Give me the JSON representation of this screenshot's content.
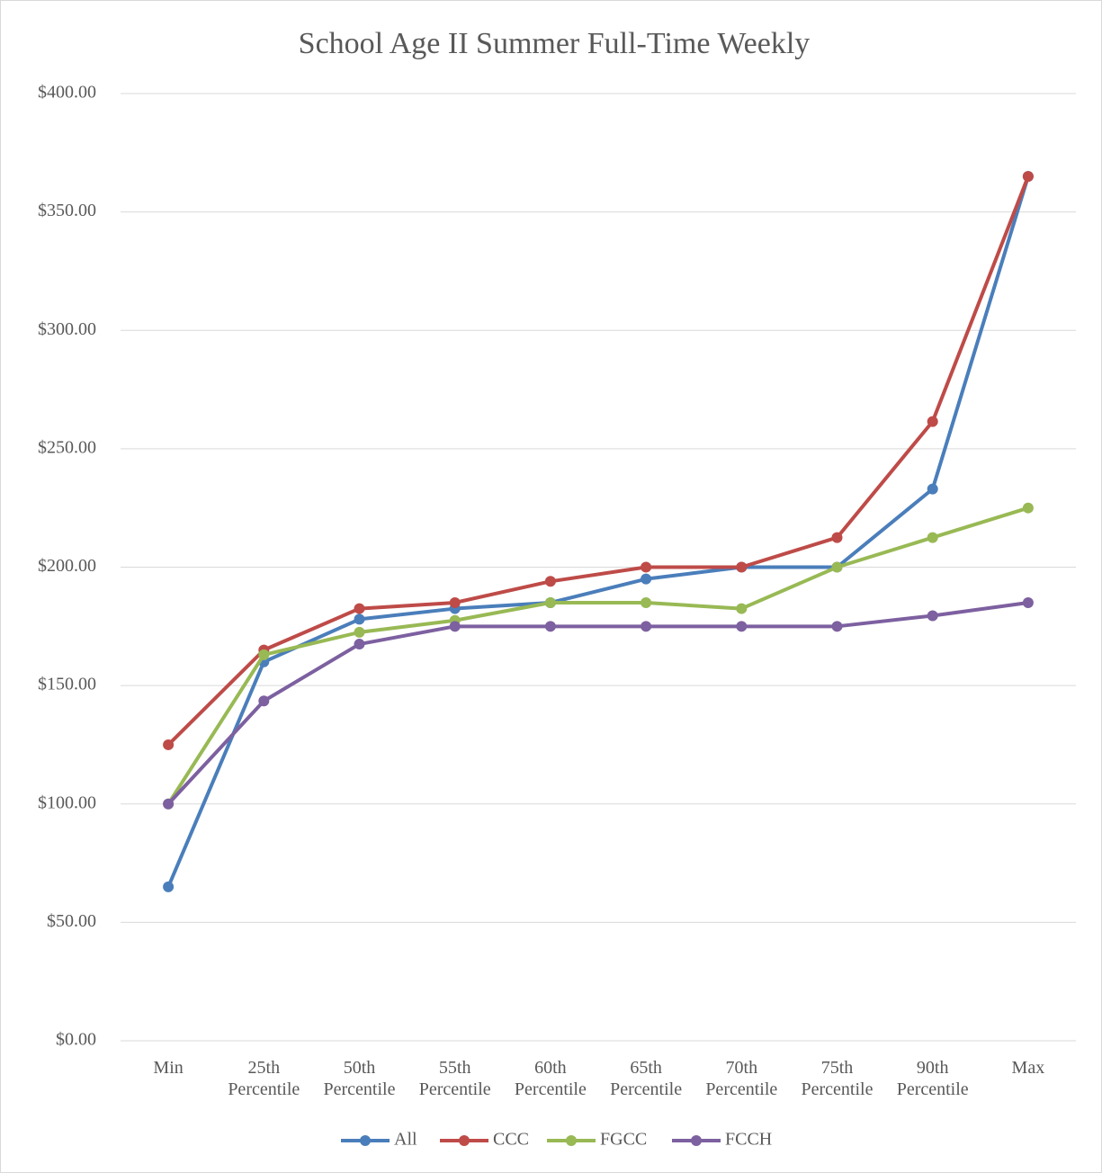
{
  "chart_data": {
    "type": "line",
    "title": "School Age II Summer Full-Time Weekly",
    "categories": [
      "Min",
      "25th Percentile",
      "50th Percentile",
      "55th Percentile",
      "60th Percentile",
      "65th Percentile",
      "70th Percentile",
      "75th Percentile",
      "90th Percentile",
      "Max"
    ],
    "series": [
      {
        "name": "All",
        "color": "#4a7ebb",
        "values": [
          65,
          160,
          178,
          182.5,
          185,
          195,
          200,
          200,
          233,
          365
        ]
      },
      {
        "name": "CCC",
        "color": "#be4b48",
        "values": [
          125,
          165,
          182.5,
          185,
          194,
          200,
          200,
          212.5,
          261.5,
          365
        ]
      },
      {
        "name": "FGCC",
        "color": "#98b954",
        "values": [
          100,
          163,
          172.5,
          177.5,
          185,
          185,
          182.5,
          200,
          212.5,
          225
        ]
      },
      {
        "name": "FCCH",
        "color": "#7d60a0",
        "values": [
          100,
          143.5,
          167.5,
          175,
          175,
          175,
          175,
          175,
          179.5,
          185
        ]
      }
    ],
    "ylim": [
      0,
      400
    ],
    "yticks": [
      {
        "value": 0,
        "label": "$0.00"
      },
      {
        "value": 50,
        "label": "$50.00"
      },
      {
        "value": 100,
        "label": "$100.00"
      },
      {
        "value": 150,
        "label": "$150.00"
      },
      {
        "value": 200,
        "label": "$200.00"
      },
      {
        "value": 250,
        "label": "$250.00"
      },
      {
        "value": 300,
        "label": "$300.00"
      },
      {
        "value": 350,
        "label": "$350.00"
      },
      {
        "value": 400,
        "label": "$400.00"
      }
    ],
    "grid": true,
    "legend": "bottom"
  }
}
